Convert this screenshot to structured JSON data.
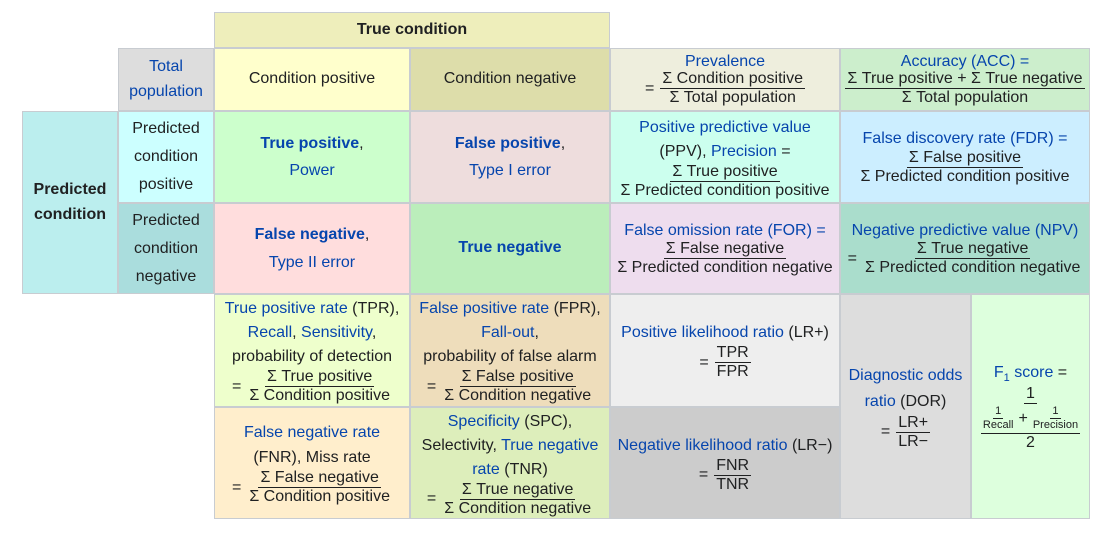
{
  "header": {
    "true_condition": "True condition",
    "predicted_condition": "Predicted condition"
  },
  "corner": {
    "total_population": "Total population"
  },
  "columns": {
    "condition_positive": "Condition positive",
    "condition_negative": "Condition negative"
  },
  "rows": {
    "predicted_positive": "Predicted condition positive",
    "predicted_negative": "Predicted condition negative"
  },
  "prevalence": {
    "label": "Prevalence",
    "eq": "=",
    "num": "Σ Condition positive",
    "den": "Σ Total population"
  },
  "accuracy": {
    "label": "Accuracy (ACC) =",
    "num": "Σ True positive + Σ True negative",
    "den": "Σ Total population"
  },
  "tp": {
    "title": "True positive",
    "comma": ",",
    "sub": "Power"
  },
  "fp": {
    "title": "False positive",
    "comma": ",",
    "sub": "Type I error"
  },
  "fn": {
    "title": "False negative",
    "comma": ",",
    "sub": "Type II error"
  },
  "tn": {
    "title": "True negative"
  },
  "ppv": {
    "label_a": "Positive predictive value",
    "label_b": "(PPV),",
    "label_c": "Precision",
    "label_d": "=",
    "num": "Σ True positive",
    "den": "Σ Predicted condition positive"
  },
  "fdr": {
    "label": "False discovery rate (FDR) =",
    "num": "Σ False positive",
    "den": "Σ Predicted condition positive"
  },
  "for_rate": {
    "label": "False omission rate (FOR) =",
    "num": "Σ False negative",
    "den": "Σ Predicted condition negative"
  },
  "npv": {
    "label": "Negative predictive value (NPV)",
    "eq": "=",
    "num": "Σ True negative",
    "den": "Σ Predicted condition negative"
  },
  "tpr": {
    "l1a": "True positive rate",
    "l1b": "(TPR),",
    "l2a": "Recall",
    "l2b": ",",
    "l2c": "Sensitivity",
    "l2d": ",",
    "l3": "probability of detection",
    "eq": "=",
    "num": "Σ True positive",
    "den": "Σ Condition positive"
  },
  "fpr": {
    "l1a": "False positive rate",
    "l1b": "(FPR),",
    "l2a": "Fall-out",
    "l2b": ",",
    "l3": "probability of false alarm",
    "eq": "=",
    "num": "Σ False positive",
    "den": "Σ Condition negative"
  },
  "lr_pos": {
    "label_a": "Positive likelihood ratio",
    "label_b": "(LR+)",
    "eq": "=",
    "num": "TPR",
    "den": "FPR"
  },
  "dor": {
    "label_a": "Diagnostic odds",
    "label_b": "ratio",
    "label_c": "(DOR)",
    "eq": "=",
    "num": "LR+",
    "den": "LR−"
  },
  "f1": {
    "label_a": "F",
    "label_sub": "1",
    "label_b": "score",
    "label_c": "=",
    "num": "1",
    "one_a": "1",
    "recall": "Recall",
    "plus": "+",
    "one_b": "1",
    "precision": "Precision",
    "den": "2"
  },
  "fnr": {
    "l1": "False negative rate",
    "l2": "(FNR), Miss rate",
    "eq": "=",
    "num": "Σ False negative",
    "den": "Σ Condition positive"
  },
  "spc": {
    "l1a": "Specificity",
    "l1b": "(SPC),",
    "l2a": "Selectivity,",
    "l2b": "True negative",
    "l3a": "rate",
    "l3b": "(TNR)",
    "eq": "=",
    "num": "Σ True negative",
    "den": "Σ Condition negative"
  },
  "lr_neg": {
    "label_a": "Negative likelihood ratio",
    "label_b": "(LR−)",
    "eq": "=",
    "num": "FNR",
    "den": "TNR"
  },
  "colors": {
    "true_condition": "#eeeebb",
    "total": "#dddddd",
    "cond_pos": "#ffffcc",
    "cond_neg": "#ddddaa",
    "prevalence": "#eeeedd",
    "accuracy": "#cceecc",
    "predicted": "#bbeeee",
    "pred_pos": "#ccffff",
    "pred_neg": "#aadddd",
    "tp": "#ccffcc",
    "fp": "#eedddd",
    "ppv": "#ccffee",
    "fdr": "#cceeff",
    "fn": "#ffdddd",
    "tn": "#bbeebb",
    "for": "#eeddee",
    "npv": "#aaddcc",
    "tpr": "#eeffcc",
    "fpr": "#eeddbb",
    "lrpos": "#eeeeee",
    "dor": "#dddddd",
    "f1": "#ddffdd",
    "fnr": "#ffeecc",
    "spc": "#ddeebb",
    "lrneg": "#cccccc"
  }
}
